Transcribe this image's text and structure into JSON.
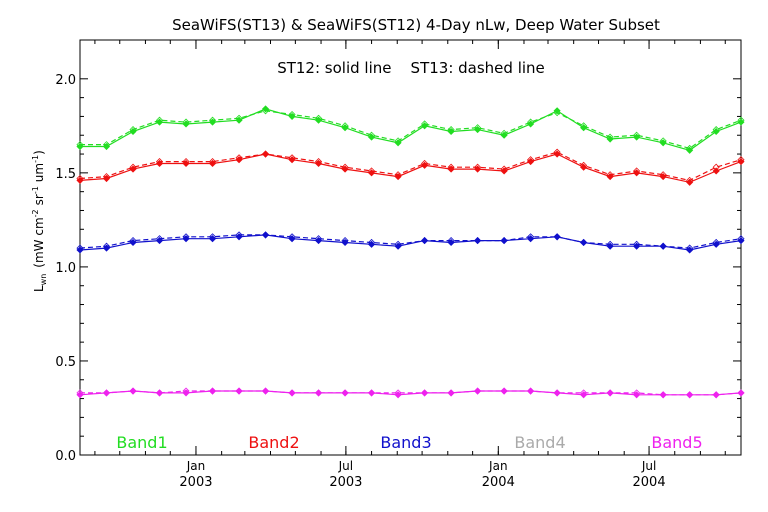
{
  "chart_data": {
    "type": "line",
    "title": "SeaWiFS(ST13) & SeaWiFS(ST12) 4-Day nLw, Deep Water Subset",
    "annotation": "ST12: solid line    ST13: dashed line",
    "ylabel": {
      "main": "L",
      "sub": "wn",
      "units_pre": "(mW cm",
      "exp1": "-2",
      "units_mid": "sr",
      "exp2": "-1",
      "units_mid2": "um",
      "exp3": "-1",
      "units_post": ")"
    },
    "ylim": [
      0.0,
      2.1
    ],
    "y_ticks": [
      "0.0",
      "0.5",
      "1.0",
      "1.5",
      "2.0"
    ],
    "y_tick_values": [
      0.0,
      0.5,
      1.0,
      1.5,
      2.0
    ],
    "x_range": [
      "2002-08-14",
      "2004-10-20"
    ],
    "x_ticks": [
      {
        "date": "2003-01-01",
        "month": "Jan",
        "year": "2003"
      },
      {
        "date": "2003-07-01",
        "month": "Jul",
        "year": "2003"
      },
      {
        "date": "2004-01-01",
        "month": "Jan",
        "year": "2004"
      },
      {
        "date": "2004-07-01",
        "month": "Jul",
        "year": "2004"
      }
    ],
    "x": [
      "2002-08-14",
      "2002-09-15",
      "2002-10-17",
      "2002-11-18",
      "2002-12-20",
      "2003-01-21",
      "2003-02-22",
      "2003-03-26",
      "2003-04-27",
      "2003-05-29",
      "2003-06-30",
      "2003-08-01",
      "2003-09-02",
      "2003-10-04",
      "2003-11-05",
      "2003-12-07",
      "2004-01-08",
      "2004-02-09",
      "2004-03-12",
      "2004-04-13",
      "2004-05-15",
      "2004-06-16",
      "2004-07-18",
      "2004-08-19",
      "2004-09-20",
      "2004-10-20"
    ],
    "series": [
      {
        "name": "Band1",
        "color": "#22dd22",
        "st12": [
          1.64,
          1.64,
          1.72,
          1.77,
          1.76,
          1.77,
          1.78,
          1.84,
          1.8,
          1.78,
          1.74,
          1.69,
          1.66,
          1.75,
          1.72,
          1.73,
          1.7,
          1.76,
          1.83,
          1.74,
          1.68,
          1.69,
          1.66,
          1.62,
          1.72,
          1.77
        ],
        "st13": [
          1.65,
          1.65,
          1.73,
          1.78,
          1.77,
          1.78,
          1.79,
          1.83,
          1.81,
          1.79,
          1.75,
          1.7,
          1.67,
          1.76,
          1.73,
          1.74,
          1.71,
          1.77,
          1.82,
          1.75,
          1.69,
          1.7,
          1.67,
          1.63,
          1.73,
          1.78
        ]
      },
      {
        "name": "Band2",
        "color": "#ee1111",
        "st12": [
          1.46,
          1.47,
          1.52,
          1.55,
          1.55,
          1.55,
          1.57,
          1.6,
          1.57,
          1.55,
          1.52,
          1.5,
          1.48,
          1.54,
          1.52,
          1.52,
          1.51,
          1.56,
          1.6,
          1.53,
          1.48,
          1.5,
          1.48,
          1.45,
          1.51,
          1.56
        ],
        "st13": [
          1.47,
          1.48,
          1.53,
          1.56,
          1.56,
          1.56,
          1.58,
          1.6,
          1.58,
          1.56,
          1.53,
          1.51,
          1.49,
          1.55,
          1.53,
          1.53,
          1.52,
          1.57,
          1.61,
          1.54,
          1.49,
          1.51,
          1.49,
          1.46,
          1.53,
          1.57
        ]
      },
      {
        "name": "Band3",
        "color": "#1111cc",
        "st12": [
          1.09,
          1.1,
          1.13,
          1.14,
          1.15,
          1.15,
          1.16,
          1.17,
          1.15,
          1.14,
          1.13,
          1.12,
          1.11,
          1.14,
          1.13,
          1.14,
          1.14,
          1.15,
          1.16,
          1.13,
          1.11,
          1.11,
          1.11,
          1.09,
          1.12,
          1.14
        ],
        "st13": [
          1.1,
          1.11,
          1.14,
          1.15,
          1.16,
          1.16,
          1.17,
          1.17,
          1.16,
          1.15,
          1.14,
          1.13,
          1.12,
          1.14,
          1.14,
          1.14,
          1.14,
          1.16,
          1.16,
          1.13,
          1.12,
          1.12,
          1.11,
          1.1,
          1.13,
          1.15
        ]
      },
      {
        "name": "Band4",
        "color": "#aaaaaa",
        "st12": [],
        "st13": []
      },
      {
        "name": "Band5",
        "color": "#ee22ee",
        "st12": [
          0.32,
          0.33,
          0.34,
          0.33,
          0.33,
          0.34,
          0.34,
          0.34,
          0.33,
          0.33,
          0.33,
          0.33,
          0.32,
          0.33,
          0.33,
          0.34,
          0.34,
          0.34,
          0.33,
          0.32,
          0.33,
          0.32,
          0.32,
          0.32,
          0.32,
          0.33
        ],
        "st13": [
          0.33,
          0.33,
          0.34,
          0.33,
          0.34,
          0.34,
          0.34,
          0.34,
          0.33,
          0.33,
          0.33,
          0.33,
          0.33,
          0.33,
          0.33,
          0.34,
          0.34,
          0.34,
          0.33,
          0.33,
          0.33,
          0.33,
          0.32,
          0.32,
          0.32,
          0.33
        ]
      }
    ]
  }
}
